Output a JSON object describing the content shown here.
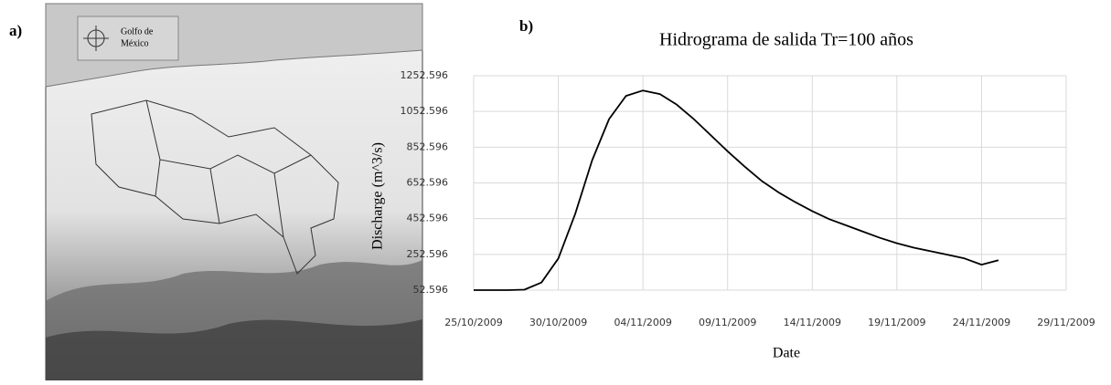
{
  "panel_labels": [
    "a)",
    "b)"
  ],
  "map": {
    "legend_text": [
      "Golfo de",
      "México"
    ]
  },
  "chart_data": {
    "type": "line",
    "title": "Hidrograma de salida Tr=100 años",
    "x_label": "Date",
    "y_label": "Discharge (m^3/s)",
    "x": [
      "25/10/2009",
      "26/10/2009",
      "27/10/2009",
      "28/10/2009",
      "29/10/2009",
      "30/10/2009",
      "31/10/2009",
      "01/11/2009",
      "02/11/2009",
      "03/11/2009",
      "04/11/2009",
      "05/11/2009",
      "06/11/2009",
      "07/11/2009",
      "08/11/2009",
      "09/11/2009",
      "10/11/2009",
      "11/11/2009",
      "12/11/2009",
      "13/11/2009",
      "14/11/2009",
      "15/11/2009",
      "16/11/2009",
      "17/11/2009",
      "18/11/2009",
      "19/11/2009",
      "20/11/2009",
      "21/11/2009",
      "22/11/2009",
      "23/11/2009",
      "24/11/2009",
      "25/11/2009"
    ],
    "values": [
      52.6,
      52.6,
      52.6,
      55,
      95,
      230,
      480,
      780,
      1010,
      1140,
      1170,
      1150,
      1090,
      1010,
      920,
      830,
      745,
      665,
      600,
      545,
      495,
      450,
      415,
      380,
      345,
      315,
      290,
      270,
      250,
      230,
      195,
      220
    ],
    "color": "#000000",
    "xlim": [
      "25/10/2009",
      "29/11/2009"
    ],
    "xticks": [
      "25/10/2009",
      "30/10/2009",
      "04/11/2009",
      "09/11/2009",
      "14/11/2009",
      "19/11/2009",
      "24/11/2009",
      "29/11/2009"
    ],
    "ylim": [
      52.596,
      1252.596
    ],
    "yticks": [
      52.596,
      252.596,
      452.596,
      652.596,
      852.596,
      1052.596,
      1252.596
    ],
    "grid": true
  }
}
